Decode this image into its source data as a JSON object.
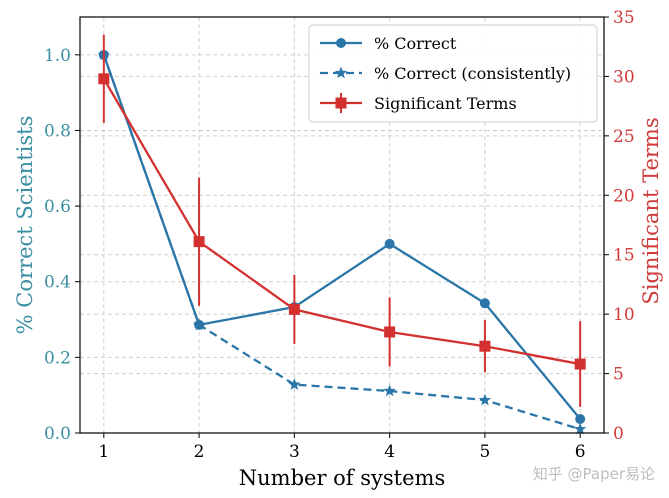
{
  "chart_data": {
    "type": "line",
    "x": [
      1,
      2,
      3,
      4,
      5,
      6
    ],
    "xlabel": "Number of systems",
    "ylabel_left": "% Correct Scientists",
    "ylabel_right": "Significant Terms",
    "xlim": [
      0.75,
      6.25
    ],
    "ylim_left": [
      0,
      1.1
    ],
    "ylim_right": [
      0,
      35
    ],
    "xticks": [
      1,
      2,
      3,
      4,
      5,
      6
    ],
    "yticks_left": [
      "0.0",
      "0.2",
      "0.4",
      "0.6",
      "0.8",
      "1.0"
    ],
    "yticks_right": [
      "0",
      "5",
      "10",
      "15",
      "20",
      "25",
      "30",
      "35"
    ],
    "grid": true,
    "legend_position": "top-right",
    "colors": {
      "left_axis": "#3b8fa3",
      "right_axis": "#cf3a3a",
      "blue": "#2a76a8",
      "red": "#d2312f"
    },
    "series": [
      {
        "name": "% Correct",
        "axis": "left",
        "style": "solid",
        "marker": "circle",
        "color": "#2a76a8",
        "values": [
          1.0,
          0.286,
          0.333,
          0.5,
          0.343,
          0.037
        ]
      },
      {
        "name": "% Correct (consistently)",
        "axis": "left",
        "style": "dashed",
        "marker": "star",
        "color": "#2a76a8",
        "values": [
          1.0,
          0.286,
          0.128,
          0.111,
          0.087,
          0.01
        ]
      },
      {
        "name": "Significant Terms",
        "axis": "right",
        "style": "solid",
        "marker": "square",
        "color": "#d2312f",
        "values": [
          29.8,
          16.1,
          10.4,
          8.5,
          7.3,
          5.8
        ],
        "error": [
          3.7,
          5.4,
          2.9,
          2.9,
          2.2,
          3.6
        ]
      }
    ]
  },
  "watermark": "知乎 @Paper易论"
}
